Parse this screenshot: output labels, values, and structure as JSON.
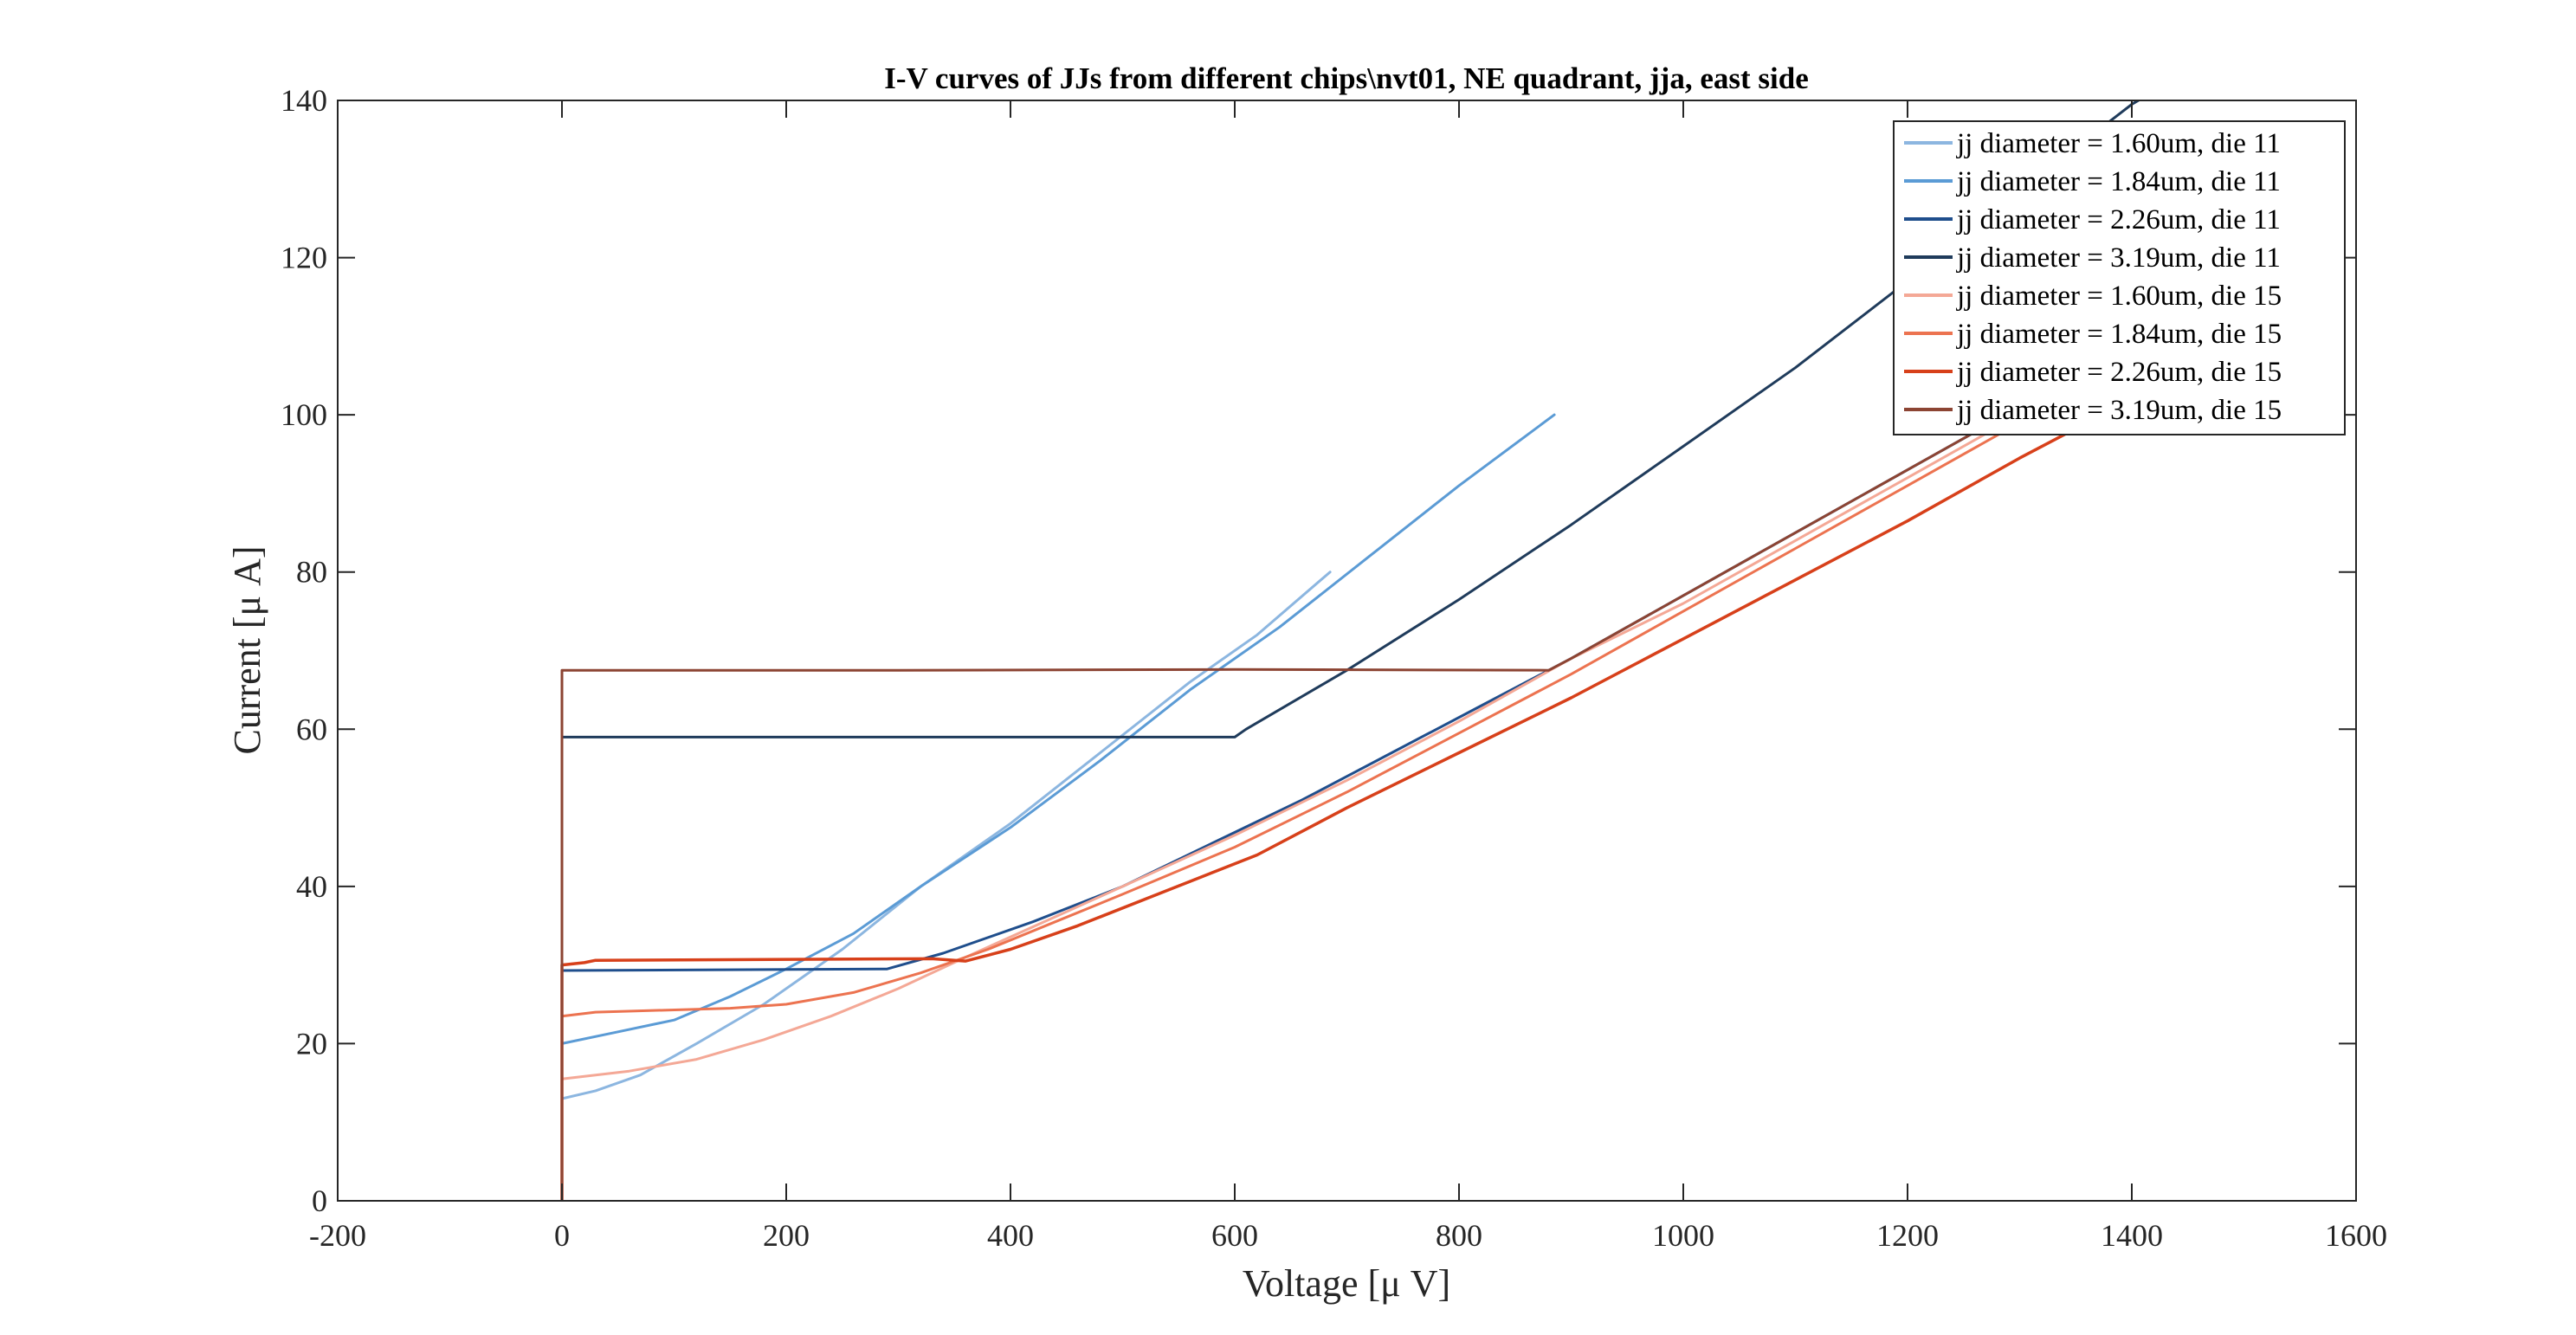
{
  "chart_data": {
    "type": "line",
    "title": "I-V curves of JJs from different chips\\nvt01, NE quadrant, jja, east side",
    "xlabel": "Voltage [μ V]",
    "ylabel": "Current [μ A]",
    "xlim": [
      -200,
      1600
    ],
    "ylim": [
      0,
      140
    ],
    "xticks": [
      -200,
      0,
      200,
      400,
      600,
      800,
      1000,
      1200,
      1400,
      1600
    ],
    "yticks": [
      0,
      20,
      40,
      60,
      80,
      100,
      120,
      140
    ],
    "xtick_labels": [
      "-200",
      "0",
      "200",
      "400",
      "600",
      "800",
      "1000",
      "1200",
      "1400",
      "1600"
    ],
    "ytick_labels": [
      "0",
      "20",
      "40",
      "60",
      "80",
      "100",
      "120",
      "140"
    ],
    "grid": false,
    "legend_position": "top-right",
    "series": [
      {
        "name": "jj diameter = 1.60um, die 11",
        "color": "#8cb6e0",
        "stroke_width": 3,
        "points": [
          [
            0,
            0
          ],
          [
            0,
            13
          ],
          [
            30,
            14
          ],
          [
            70,
            16
          ],
          [
            120,
            20
          ],
          [
            180,
            25
          ],
          [
            250,
            32
          ],
          [
            320,
            40
          ],
          [
            400,
            48
          ],
          [
            480,
            57
          ],
          [
            560,
            66
          ],
          [
            620,
            72
          ],
          [
            685,
            80
          ]
        ]
      },
      {
        "name": "jj diameter = 1.84um, die 11",
        "color": "#5b9bd5",
        "stroke_width": 3,
        "points": [
          [
            0,
            0
          ],
          [
            0,
            20
          ],
          [
            50,
            21.5
          ],
          [
            100,
            23
          ],
          [
            150,
            26
          ],
          [
            200,
            29.5
          ],
          [
            260,
            34
          ],
          [
            320,
            40
          ],
          [
            400,
            47.5
          ],
          [
            480,
            56
          ],
          [
            560,
            65
          ],
          [
            640,
            73
          ],
          [
            720,
            82
          ],
          [
            800,
            91
          ],
          [
            885,
            100
          ]
        ]
      },
      {
        "name": "jj diameter = 2.26um, die 11",
        "color": "#1f4e8c",
        "stroke_width": 3,
        "points": [
          [
            0,
            0
          ],
          [
            0,
            29.3
          ],
          [
            290,
            29.5
          ],
          [
            340,
            31.5
          ],
          [
            420,
            35.5
          ],
          [
            500,
            40
          ],
          [
            580,
            45.5
          ],
          [
            660,
            51
          ],
          [
            740,
            57
          ],
          [
            820,
            63
          ],
          [
            900,
            69
          ],
          [
            1000,
            77
          ],
          [
            1100,
            85
          ],
          [
            1200,
            93
          ],
          [
            1300,
            101
          ],
          [
            1400,
            109
          ]
        ]
      },
      {
        "name": "jj diameter = 3.19um, die 11",
        "color": "#1f3b5b",
        "stroke_width": 3,
        "points": [
          [
            0,
            0
          ],
          [
            0,
            59
          ],
          [
            600,
            59
          ],
          [
            610,
            60
          ],
          [
            700,
            67.5
          ],
          [
            800,
            76.5
          ],
          [
            900,
            86
          ],
          [
            1000,
            96
          ],
          [
            1100,
            106
          ],
          [
            1200,
            117
          ],
          [
            1300,
            128.5
          ],
          [
            1400,
            139.5
          ],
          [
            1430,
            142
          ]
        ]
      },
      {
        "name": "jj diameter = 1.60um, die 15",
        "color": "#f4a896",
        "stroke_width": 3,
        "points": [
          [
            0,
            0
          ],
          [
            0,
            15.5
          ],
          [
            60,
            16.5
          ],
          [
            120,
            18
          ],
          [
            180,
            20.5
          ],
          [
            240,
            23.5
          ],
          [
            300,
            27
          ],
          [
            360,
            31
          ],
          [
            430,
            35.5
          ],
          [
            500,
            40
          ],
          [
            600,
            46.5
          ],
          [
            700,
            53.5
          ],
          [
            800,
            61
          ],
          [
            900,
            69
          ],
          [
            1000,
            76
          ],
          [
            1100,
            84
          ],
          [
            1200,
            92
          ],
          [
            1300,
            100
          ],
          [
            1340,
            103
          ]
        ]
      },
      {
        "name": "jj diameter = 1.84um, die 15",
        "color": "#ec7350",
        "stroke_width": 3,
        "points": [
          [
            0,
            0
          ],
          [
            0,
            23.5
          ],
          [
            30,
            24
          ],
          [
            150,
            24.5
          ],
          [
            200,
            25
          ],
          [
            260,
            26.5
          ],
          [
            320,
            29
          ],
          [
            380,
            32
          ],
          [
            440,
            35.5
          ],
          [
            500,
            39
          ],
          [
            600,
            45
          ],
          [
            700,
            52
          ],
          [
            800,
            59.5
          ],
          [
            900,
            67
          ],
          [
            1000,
            75
          ],
          [
            1100,
            83
          ],
          [
            1200,
            91
          ],
          [
            1300,
            99
          ],
          [
            1350,
            103
          ]
        ]
      },
      {
        "name": "jj diameter = 2.26um, die 15",
        "color": "#d7401a",
        "stroke_width": 3.5,
        "points": [
          [
            0,
            0
          ],
          [
            0,
            30
          ],
          [
            20,
            30.3
          ],
          [
            30,
            30.6
          ],
          [
            330,
            30.8
          ],
          [
            360,
            30.5
          ],
          [
            400,
            32
          ],
          [
            460,
            35
          ],
          [
            540,
            39.5
          ],
          [
            620,
            44
          ],
          [
            700,
            50
          ],
          [
            800,
            57
          ],
          [
            900,
            64
          ],
          [
            1000,
            71.5
          ],
          [
            1100,
            79
          ],
          [
            1200,
            86.5
          ],
          [
            1300,
            94.5
          ],
          [
            1400,
            102
          ]
        ]
      },
      {
        "name": "jj diameter = 3.19um, die 15",
        "color": "#8c4433",
        "stroke_width": 3,
        "points": [
          [
            0,
            0
          ],
          [
            0,
            67.5
          ],
          [
            300,
            67.5
          ],
          [
            600,
            67.6
          ],
          [
            880,
            67.5
          ],
          [
            900,
            69
          ],
          [
            1000,
            77
          ],
          [
            1100,
            85
          ],
          [
            1200,
            93
          ],
          [
            1300,
            101
          ],
          [
            1330,
            103
          ]
        ]
      }
    ]
  }
}
